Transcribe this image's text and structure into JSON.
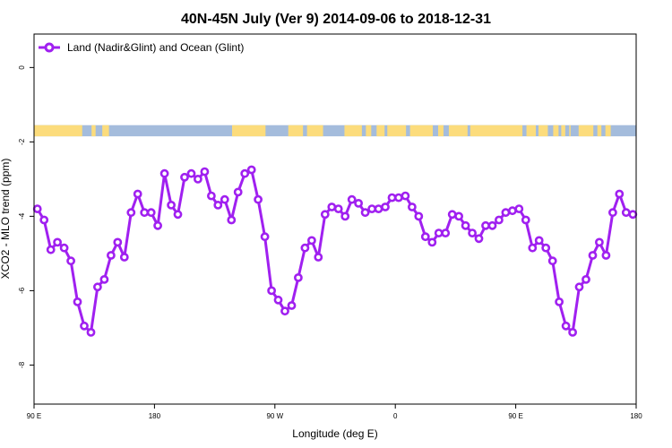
{
  "chart_data": {
    "type": "line",
    "title": "40N-45N July (Ver 9)   2014-09-06 to 2018-12-31",
    "xlabel": "Longitude (deg E)",
    "ylabel": "XCO2 - MLO trend (ppm)",
    "xlim": [
      90,
      540
    ],
    "ylim": [
      -9.05,
      0.9
    ],
    "x_ticks": [
      {
        "value": 90,
        "label": "90 E"
      },
      {
        "value": 180,
        "label": "180"
      },
      {
        "value": 270,
        "label": "90 W"
      },
      {
        "value": 360,
        "label": "0"
      },
      {
        "value": 450,
        "label": "90 E"
      },
      {
        "value": 540,
        "label": "180"
      }
    ],
    "y_ticks": [
      {
        "value": 0,
        "label": "0"
      },
      {
        "value": -2,
        "label": "-2"
      },
      {
        "value": -4,
        "label": "-4"
      },
      {
        "value": -6,
        "label": "-6"
      },
      {
        "value": -8,
        "label": "-8"
      }
    ],
    "grid": false,
    "legend_position": "top-left",
    "series": [
      {
        "name": "Land (Nadir&Glint) and Ocean (Glint)",
        "color": "#a020f0",
        "x": [
          92.5,
          97.5,
          102.5,
          107.5,
          112.5,
          117.5,
          122.5,
          127.5,
          132.5,
          137.5,
          142.5,
          147.5,
          152.5,
          157.5,
          162.5,
          167.5,
          172.5,
          177.5,
          182.5,
          187.5,
          192.5,
          197.5,
          202.5,
          207.5,
          212.5,
          217.5,
          222.5,
          227.5,
          232.5,
          237.5,
          242.5,
          247.5,
          252.5,
          257.5,
          262.5,
          267.5,
          272.5,
          277.5,
          282.5,
          287.5,
          292.5,
          297.5,
          302.5,
          307.5,
          312.5,
          317.5,
          322.5,
          327.5,
          332.5,
          337.5,
          342.5,
          347.5,
          352.5,
          357.5,
          362.5,
          367.5,
          372.5,
          377.5,
          382.5,
          387.5,
          392.5,
          397.5,
          402.5,
          407.5,
          412.5,
          417.5,
          422.5,
          427.5,
          432.5,
          437.5,
          442.5,
          447.5,
          452.5,
          457.5,
          462.5,
          467.5,
          472.5,
          477.5,
          482.5,
          487.5,
          492.5,
          497.5,
          502.5,
          507.5,
          512.5,
          517.5,
          522.5,
          527.5,
          532.5,
          537.5
        ],
        "y": [
          -3.8,
          -4.1,
          -4.9,
          -4.7,
          -4.85,
          -5.2,
          -6.3,
          -6.95,
          -7.12,
          -5.9,
          -5.7,
          -5.05,
          -4.7,
          -5.1,
          -3.9,
          -3.4,
          -3.9,
          -3.9,
          -4.25,
          -2.85,
          -3.7,
          -3.95,
          -2.95,
          -2.85,
          -3.0,
          -2.8,
          -3.45,
          -3.7,
          -3.55,
          -4.1,
          -3.35,
          -2.85,
          -2.75,
          -3.55,
          -4.55,
          -6.0,
          -6.25,
          -6.55,
          -6.4,
          -5.65,
          -4.85,
          -4.65,
          -5.1,
          -3.95,
          -3.75,
          -3.8,
          -4.0,
          -3.55,
          -3.65,
          -3.9,
          -3.8,
          -3.8,
          -3.75,
          -3.5,
          -3.5,
          -3.45,
          -3.75,
          -4.0,
          -4.55,
          -4.7,
          -4.45,
          -4.45,
          -3.95,
          -4.0,
          -4.25,
          -4.45,
          -4.6,
          -4.25,
          -4.25,
          -4.1,
          -3.9,
          -3.85,
          -3.8,
          -4.1,
          -4.85,
          -4.65,
          -4.85,
          -5.2,
          -6.3,
          -6.95,
          -7.12,
          -5.9,
          -5.7,
          -5.05,
          -4.7,
          -5.05,
          -3.9,
          -3.4,
          -3.9,
          -3.95
        ]
      }
    ],
    "land_ocean_band": {
      "y_range": [
        -1.85,
        -1.55
      ],
      "ocean_color": "#a4bcdc",
      "land_color": "#fcdc7c",
      "land_segments": [
        [
          90,
          126
        ],
        [
          133,
          136
        ],
        [
          141,
          146
        ],
        [
          238,
          263
        ],
        [
          280,
          291
        ],
        [
          294,
          306
        ],
        [
          322,
          335
        ],
        [
          338,
          342
        ],
        [
          346,
          352
        ],
        [
          354,
          368
        ],
        [
          371,
          388
        ],
        [
          392,
          396
        ],
        [
          400,
          414
        ],
        [
          416,
          455
        ],
        [
          458,
          465
        ],
        [
          467,
          474
        ],
        [
          478,
          482
        ],
        [
          484,
          487
        ],
        [
          490,
          491
        ],
        [
          497,
          508
        ],
        [
          511,
          514
        ],
        [
          517,
          521
        ]
      ]
    }
  }
}
